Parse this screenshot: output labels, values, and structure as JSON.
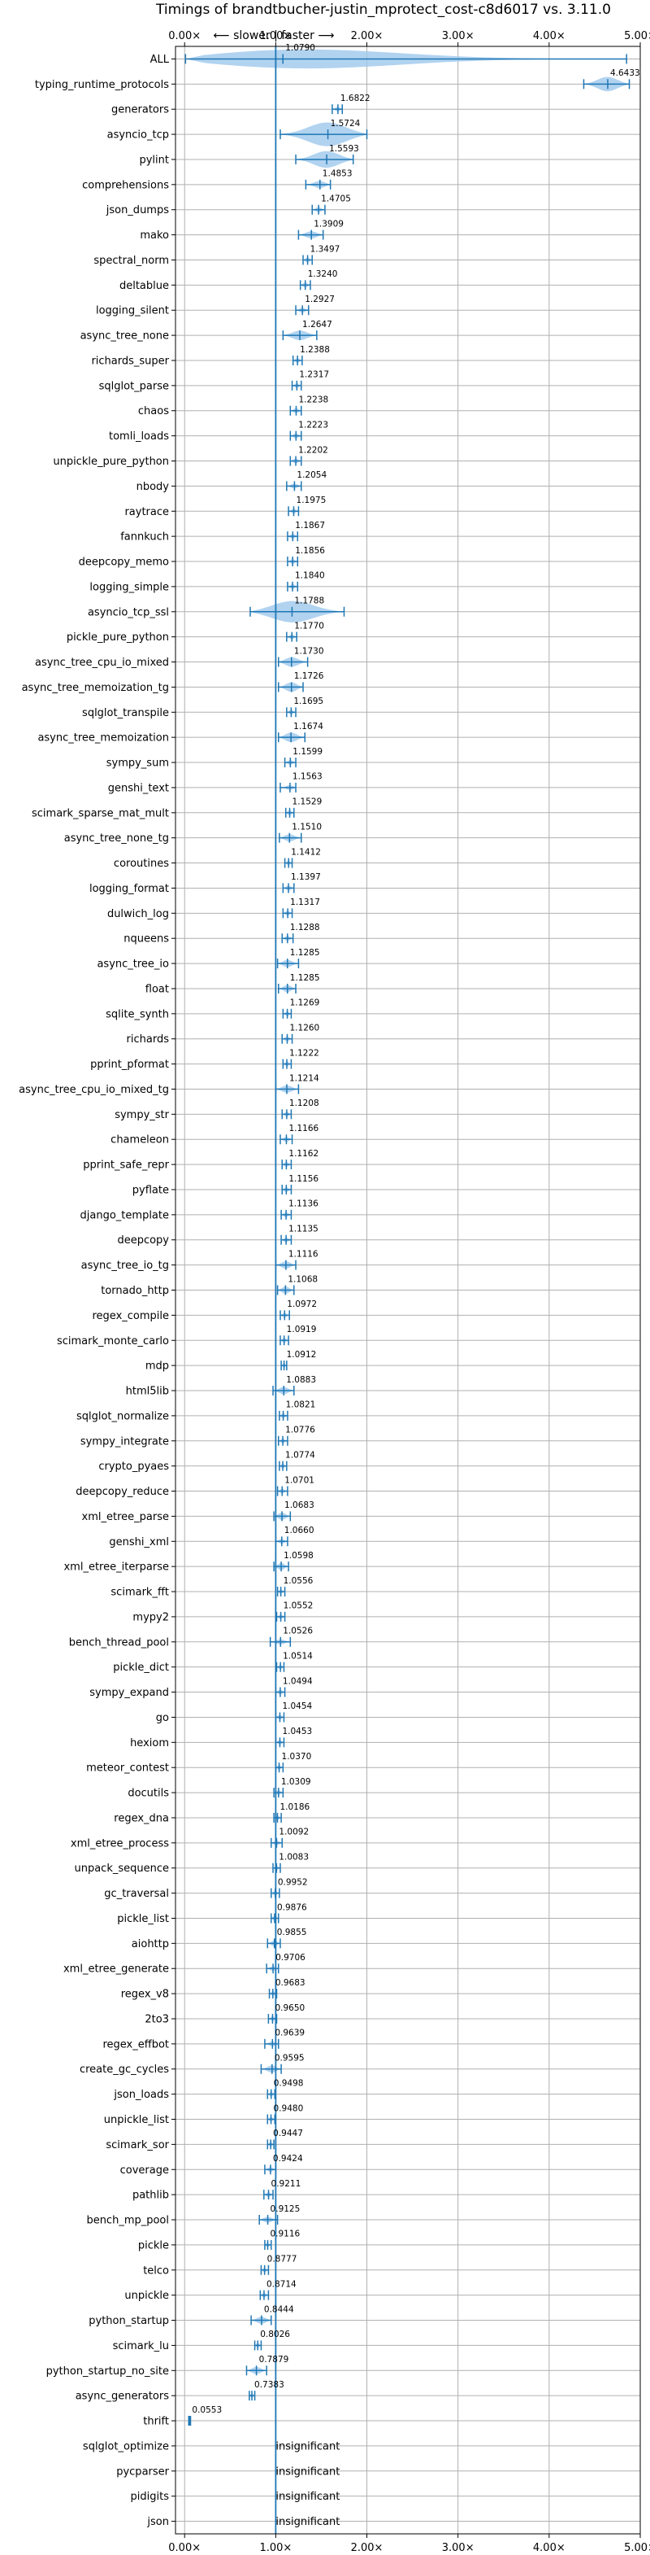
{
  "chart_data": {
    "type": "violin",
    "title": "Timings of brandtbucher-justin_mprotect_cost-c8d6017 vs. 3.11.0",
    "subtitle": "⟵ slower  |  faster ⟶",
    "xlim": [
      -0.1,
      5.0
    ],
    "xticks": [
      0,
      1,
      2,
      3,
      4,
      5
    ],
    "xtick_labels": [
      "0.00×",
      "1.00×",
      "2.00×",
      "3.00×",
      "4.00×",
      "5.00×"
    ],
    "reference_line": 1.0,
    "grid": true,
    "insignificant_text": "insignificant",
    "colors": {
      "violin": "#9ec8ec",
      "bar": "#1f77b4",
      "reference": "#1f77b4",
      "grid": "#b0b0b0"
    },
    "benchmarks": [
      {
        "name": "ALL",
        "value": 1.079,
        "label": "1.0790",
        "low": 0.01,
        "high": 4.85,
        "width": 0.45
      },
      {
        "name": "typing_runtime_protocols",
        "value": 4.6433,
        "label": "4.6433",
        "low": 4.38,
        "high": 4.88,
        "width": 0.3
      },
      {
        "name": "generators",
        "value": 1.6822,
        "label": "1.6822",
        "low": 1.62,
        "high": 1.73,
        "width": 0.1
      },
      {
        "name": "asyncio_tcp",
        "value": 1.5724,
        "label": "1.5724",
        "low": 1.05,
        "high": 2.0,
        "width": 0.5
      },
      {
        "name": "pylint",
        "value": 1.5593,
        "label": "1.5593",
        "low": 1.22,
        "high": 1.85,
        "width": 0.35
      },
      {
        "name": "comprehensions",
        "value": 1.4853,
        "label": "1.4853",
        "low": 1.33,
        "high": 1.6,
        "width": 0.15
      },
      {
        "name": "json_dumps",
        "value": 1.4705,
        "label": "1.4705",
        "low": 1.4,
        "high": 1.54,
        "width": 0.1
      },
      {
        "name": "mako",
        "value": 1.3909,
        "label": "1.3909",
        "low": 1.25,
        "high": 1.52,
        "width": 0.15
      },
      {
        "name": "spectral_norm",
        "value": 1.3497,
        "label": "1.3497",
        "low": 1.3,
        "high": 1.4,
        "width": 0.1
      },
      {
        "name": "deltablue",
        "value": 1.324,
        "label": "1.3240",
        "low": 1.27,
        "high": 1.38,
        "width": 0.1
      },
      {
        "name": "logging_silent",
        "value": 1.2927,
        "label": "1.2927",
        "low": 1.22,
        "high": 1.36,
        "width": 0.1
      },
      {
        "name": "async_tree_none",
        "value": 1.2647,
        "label": "1.2647",
        "low": 1.08,
        "high": 1.45,
        "width": 0.2
      },
      {
        "name": "richards_super",
        "value": 1.2388,
        "label": "1.2388",
        "low": 1.19,
        "high": 1.29,
        "width": 0.1
      },
      {
        "name": "sqlglot_parse",
        "value": 1.2317,
        "label": "1.2317",
        "low": 1.18,
        "high": 1.28,
        "width": 0.1
      },
      {
        "name": "chaos",
        "value": 1.2238,
        "label": "1.2238",
        "low": 1.16,
        "high": 1.28,
        "width": 0.1
      },
      {
        "name": "tomli_loads",
        "value": 1.2223,
        "label": "1.2223",
        "low": 1.16,
        "high": 1.28,
        "width": 0.1
      },
      {
        "name": "unpickle_pure_python",
        "value": 1.2202,
        "label": "1.2202",
        "low": 1.16,
        "high": 1.28,
        "width": 0.1
      },
      {
        "name": "nbody",
        "value": 1.2054,
        "label": "1.2054",
        "low": 1.12,
        "high": 1.28,
        "width": 0.1
      },
      {
        "name": "raytrace",
        "value": 1.1975,
        "label": "1.1975",
        "low": 1.14,
        "high": 1.25,
        "width": 0.1
      },
      {
        "name": "fannkuch",
        "value": 1.1867,
        "label": "1.1867",
        "low": 1.13,
        "high": 1.24,
        "width": 0.1
      },
      {
        "name": "deepcopy_memo",
        "value": 1.1856,
        "label": "1.1856",
        "low": 1.13,
        "high": 1.24,
        "width": 0.1
      },
      {
        "name": "logging_simple",
        "value": 1.184,
        "label": "1.1840",
        "low": 1.13,
        "high": 1.24,
        "width": 0.1
      },
      {
        "name": "asyncio_tcp_ssl",
        "value": 1.1788,
        "label": "1.1788",
        "low": 0.72,
        "high": 1.75,
        "width": 0.45
      },
      {
        "name": "pickle_pure_python",
        "value": 1.177,
        "label": "1.1770",
        "low": 1.12,
        "high": 1.23,
        "width": 0.1
      },
      {
        "name": "async_tree_cpu_io_mixed",
        "value": 1.173,
        "label": "1.1730",
        "low": 1.03,
        "high": 1.35,
        "width": 0.2
      },
      {
        "name": "async_tree_memoization_tg",
        "value": 1.1726,
        "label": "1.1726",
        "low": 1.03,
        "high": 1.3,
        "width": 0.2
      },
      {
        "name": "sqlglot_transpile",
        "value": 1.1695,
        "label": "1.1695",
        "low": 1.12,
        "high": 1.22,
        "width": 0.1
      },
      {
        "name": "async_tree_memoization",
        "value": 1.1674,
        "label": "1.1674",
        "low": 1.03,
        "high": 1.32,
        "width": 0.2
      },
      {
        "name": "sympy_sum",
        "value": 1.1599,
        "label": "1.1599",
        "low": 1.1,
        "high": 1.22,
        "width": 0.1
      },
      {
        "name": "genshi_text",
        "value": 1.1563,
        "label": "1.1563",
        "low": 1.05,
        "high": 1.22,
        "width": 0.1
      },
      {
        "name": "scimark_sparse_mat_mult",
        "value": 1.1529,
        "label": "1.1529",
        "low": 1.11,
        "high": 1.2,
        "width": 0.08
      },
      {
        "name": "async_tree_none_tg",
        "value": 1.151,
        "label": "1.1510",
        "low": 1.04,
        "high": 1.28,
        "width": 0.15
      },
      {
        "name": "coroutines",
        "value": 1.1412,
        "label": "1.1412",
        "low": 1.1,
        "high": 1.18,
        "width": 0.08
      },
      {
        "name": "logging_format",
        "value": 1.1397,
        "label": "1.1397",
        "low": 1.08,
        "high": 1.2,
        "width": 0.1
      },
      {
        "name": "dulwich_log",
        "value": 1.1317,
        "label": "1.1317",
        "low": 1.08,
        "high": 1.18,
        "width": 0.1
      },
      {
        "name": "nqueens",
        "value": 1.1288,
        "label": "1.1288",
        "low": 1.07,
        "high": 1.19,
        "width": 0.1
      },
      {
        "name": "async_tree_io",
        "value": 1.1285,
        "label": "1.1285",
        "low": 1.02,
        "high": 1.25,
        "width": 0.15
      },
      {
        "name": "float",
        "value": 1.1285,
        "label": "1.1285",
        "low": 1.03,
        "high": 1.22,
        "width": 0.15
      },
      {
        "name": "sqlite_synth",
        "value": 1.1269,
        "label": "1.1269",
        "low": 1.08,
        "high": 1.17,
        "width": 0.08
      },
      {
        "name": "richards",
        "value": 1.126,
        "label": "1.1260",
        "low": 1.07,
        "high": 1.18,
        "width": 0.1
      },
      {
        "name": "pprint_pformat",
        "value": 1.1222,
        "label": "1.1222",
        "low": 1.08,
        "high": 1.17,
        "width": 0.08
      },
      {
        "name": "async_tree_cpu_io_mixed_tg",
        "value": 1.1214,
        "label": "1.1214",
        "low": 1.0,
        "high": 1.25,
        "width": 0.15
      },
      {
        "name": "sympy_str",
        "value": 1.1208,
        "label": "1.1208",
        "low": 1.07,
        "high": 1.17,
        "width": 0.1
      },
      {
        "name": "chameleon",
        "value": 1.1166,
        "label": "1.1166",
        "low": 1.05,
        "high": 1.18,
        "width": 0.1
      },
      {
        "name": "pprint_safe_repr",
        "value": 1.1162,
        "label": "1.1162",
        "low": 1.07,
        "high": 1.17,
        "width": 0.08
      },
      {
        "name": "pyflate",
        "value": 1.1156,
        "label": "1.1156",
        "low": 1.07,
        "high": 1.17,
        "width": 0.08
      },
      {
        "name": "django_template",
        "value": 1.1136,
        "label": "1.1136",
        "low": 1.06,
        "high": 1.17,
        "width": 0.1
      },
      {
        "name": "deepcopy",
        "value": 1.1135,
        "label": "1.1135",
        "low": 1.06,
        "high": 1.17,
        "width": 0.1
      },
      {
        "name": "async_tree_io_tg",
        "value": 1.1116,
        "label": "1.1116",
        "low": 1.0,
        "high": 1.22,
        "width": 0.15
      },
      {
        "name": "tornado_http",
        "value": 1.1068,
        "label": "1.1068",
        "low": 1.02,
        "high": 1.2,
        "width": 0.15
      },
      {
        "name": "regex_compile",
        "value": 1.0972,
        "label": "1.0972",
        "low": 1.05,
        "high": 1.15,
        "width": 0.08
      },
      {
        "name": "scimark_monte_carlo",
        "value": 1.0919,
        "label": "1.0919",
        "low": 1.05,
        "high": 1.14,
        "width": 0.08
      },
      {
        "name": "mdp",
        "value": 1.0912,
        "label": "1.0912",
        "low": 1.06,
        "high": 1.12,
        "width": 0.06
      },
      {
        "name": "html5lib",
        "value": 1.0883,
        "label": "1.0883",
        "low": 0.97,
        "high": 1.2,
        "width": 0.15
      },
      {
        "name": "sqlglot_normalize",
        "value": 1.0821,
        "label": "1.0821",
        "low": 1.04,
        "high": 1.13,
        "width": 0.08
      },
      {
        "name": "sympy_integrate",
        "value": 1.0776,
        "label": "1.0776",
        "low": 1.03,
        "high": 1.13,
        "width": 0.08
      },
      {
        "name": "crypto_pyaes",
        "value": 1.0774,
        "label": "1.0774",
        "low": 1.04,
        "high": 1.12,
        "width": 0.08
      },
      {
        "name": "deepcopy_reduce",
        "value": 1.0701,
        "label": "1.0701",
        "low": 1.02,
        "high": 1.13,
        "width": 0.1
      },
      {
        "name": "xml_etree_parse",
        "value": 1.0683,
        "label": "1.0683",
        "low": 0.98,
        "high": 1.16,
        "width": 0.15
      },
      {
        "name": "genshi_xml",
        "value": 1.066,
        "label": "1.0660",
        "low": 1.0,
        "high": 1.13,
        "width": 0.1
      },
      {
        "name": "xml_etree_iterparse",
        "value": 1.0598,
        "label": "1.0598",
        "low": 0.98,
        "high": 1.14,
        "width": 0.15
      },
      {
        "name": "scimark_fft",
        "value": 1.0556,
        "label": "1.0556",
        "low": 1.02,
        "high": 1.1,
        "width": 0.08
      },
      {
        "name": "mypy2",
        "value": 1.0552,
        "label": "1.0552",
        "low": 1.01,
        "high": 1.1,
        "width": 0.08
      },
      {
        "name": "bench_thread_pool",
        "value": 1.0526,
        "label": "1.0526",
        "low": 0.94,
        "high": 1.16,
        "width": 0.1
      },
      {
        "name": "pickle_dict",
        "value": 1.0514,
        "label": "1.0514",
        "low": 1.01,
        "high": 1.09,
        "width": 0.08
      },
      {
        "name": "sympy_expand",
        "value": 1.0494,
        "label": "1.0494",
        "low": 1.0,
        "high": 1.1,
        "width": 0.08
      },
      {
        "name": "go",
        "value": 1.0454,
        "label": "1.0454",
        "low": 1.0,
        "high": 1.09,
        "width": 0.08
      },
      {
        "name": "hexiom",
        "value": 1.0453,
        "label": "1.0453",
        "low": 1.0,
        "high": 1.09,
        "width": 0.08
      },
      {
        "name": "meteor_contest",
        "value": 1.037,
        "label": "1.0370",
        "low": 1.0,
        "high": 1.08,
        "width": 0.08
      },
      {
        "name": "docutils",
        "value": 1.0309,
        "label": "1.0309",
        "low": 0.98,
        "high": 1.08,
        "width": 0.08
      },
      {
        "name": "regex_dna",
        "value": 1.0186,
        "label": "1.0186",
        "low": 0.98,
        "high": 1.06,
        "width": 0.08
      },
      {
        "name": "xml_etree_process",
        "value": 1.0092,
        "label": "1.0092",
        "low": 0.95,
        "high": 1.07,
        "width": 0.1
      },
      {
        "name": "unpack_sequence",
        "value": 1.0083,
        "label": "1.0083",
        "low": 0.97,
        "high": 1.05,
        "width": 0.08
      },
      {
        "name": "gc_traversal",
        "value": 0.9952,
        "label": "0.9952",
        "low": 0.95,
        "high": 1.04,
        "width": 0.08
      },
      {
        "name": "pickle_list",
        "value": 0.9876,
        "label": "0.9876",
        "low": 0.95,
        "high": 1.03,
        "width": 0.08
      },
      {
        "name": "aiohttp",
        "value": 0.9855,
        "label": "0.9855",
        "low": 0.91,
        "high": 1.05,
        "width": 0.12
      },
      {
        "name": "xml_etree_generate",
        "value": 0.9706,
        "label": "0.9706",
        "low": 0.9,
        "high": 1.03,
        "width": 0.1
      },
      {
        "name": "regex_v8",
        "value": 0.9683,
        "label": "0.9683",
        "low": 0.93,
        "high": 1.01,
        "width": 0.08
      },
      {
        "name": "2to3",
        "value": 0.965,
        "label": "0.9650",
        "low": 0.92,
        "high": 1.01,
        "width": 0.08
      },
      {
        "name": "regex_effbot",
        "value": 0.9639,
        "label": "0.9639",
        "low": 0.88,
        "high": 1.03,
        "width": 0.1
      },
      {
        "name": "create_gc_cycles",
        "value": 0.9595,
        "label": "0.9595",
        "low": 0.84,
        "high": 1.06,
        "width": 0.15
      },
      {
        "name": "json_loads",
        "value": 0.9498,
        "label": "0.9498",
        "low": 0.91,
        "high": 0.99,
        "width": 0.08
      },
      {
        "name": "unpickle_list",
        "value": 0.948,
        "label": "0.9480",
        "low": 0.91,
        "high": 0.99,
        "width": 0.08
      },
      {
        "name": "scimark_sor",
        "value": 0.9447,
        "label": "0.9447",
        "low": 0.91,
        "high": 0.98,
        "width": 0.08
      },
      {
        "name": "coverage",
        "value": 0.9424,
        "label": "0.9424",
        "low": 0.88,
        "high": 1.0,
        "width": 0.1
      },
      {
        "name": "pathlib",
        "value": 0.9211,
        "label": "0.9211",
        "low": 0.87,
        "high": 0.97,
        "width": 0.08
      },
      {
        "name": "bench_mp_pool",
        "value": 0.9125,
        "label": "0.9125",
        "low": 0.82,
        "high": 1.02,
        "width": 0.12
      },
      {
        "name": "pickle",
        "value": 0.9116,
        "label": "0.9116",
        "low": 0.88,
        "high": 0.95,
        "width": 0.06
      },
      {
        "name": "telco",
        "value": 0.8777,
        "label": "0.8777",
        "low": 0.84,
        "high": 0.92,
        "width": 0.08
      },
      {
        "name": "unpickle",
        "value": 0.8714,
        "label": "0.8714",
        "low": 0.83,
        "high": 0.92,
        "width": 0.08
      },
      {
        "name": "python_startup",
        "value": 0.8444,
        "label": "0.8444",
        "low": 0.73,
        "high": 0.95,
        "width": 0.15
      },
      {
        "name": "scimark_lu",
        "value": 0.8026,
        "label": "0.8026",
        "low": 0.77,
        "high": 0.84,
        "width": 0.06
      },
      {
        "name": "python_startup_no_site",
        "value": 0.7879,
        "label": "0.7879",
        "low": 0.68,
        "high": 0.9,
        "width": 0.15
      },
      {
        "name": "async_generators",
        "value": 0.7383,
        "label": "0.7383",
        "low": 0.71,
        "high": 0.77,
        "width": 0.06
      },
      {
        "name": "thrift",
        "value": 0.0553,
        "label": "0.0553",
        "low": 0.045,
        "high": 0.065,
        "width": 0.04
      },
      {
        "name": "sqlglot_optimize",
        "value": null,
        "label": "insignificant"
      },
      {
        "name": "pycparser",
        "value": null,
        "label": "insignificant"
      },
      {
        "name": "pidigits",
        "value": null,
        "label": "insignificant"
      },
      {
        "name": "json",
        "value": null,
        "label": "insignificant"
      }
    ]
  }
}
